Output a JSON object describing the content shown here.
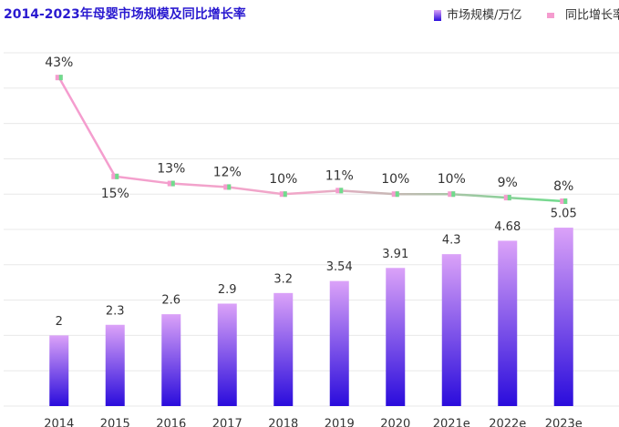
{
  "chart_data": {
    "type": "bar-line",
    "title": "2014-2023年母婴市场规模及同比增长率",
    "categories": [
      "2014",
      "2015",
      "2016",
      "2017",
      "2018",
      "2019",
      "2020",
      "2021e",
      "2022e",
      "2023e"
    ],
    "series": [
      {
        "name": "市场规模/万亿",
        "type": "bar",
        "color": "#8a4cf0",
        "values": [
          2,
          2.3,
          2.6,
          2.9,
          3.2,
          3.54,
          3.91,
          4.3,
          4.68,
          5.05
        ]
      },
      {
        "name": "同比增长率",
        "type": "line",
        "axis": "y2",
        "color": "#f59ccf",
        "values": [
          43,
          15,
          13,
          12,
          10,
          11,
          10,
          10,
          9,
          8
        ],
        "value_labels": [
          "43%",
          "15%",
          "13%",
          "12%",
          "10%",
          "11%",
          "10%",
          "10%",
          "9%",
          "8%"
        ]
      }
    ],
    "ylim": [
      0,
      10
    ],
    "yticks": [
      0,
      1,
      2,
      3,
      4,
      5,
      6,
      7,
      8,
      9,
      10
    ],
    "y2lim": [
      -50,
      50
    ],
    "grid": true,
    "legend": "top-right"
  }
}
